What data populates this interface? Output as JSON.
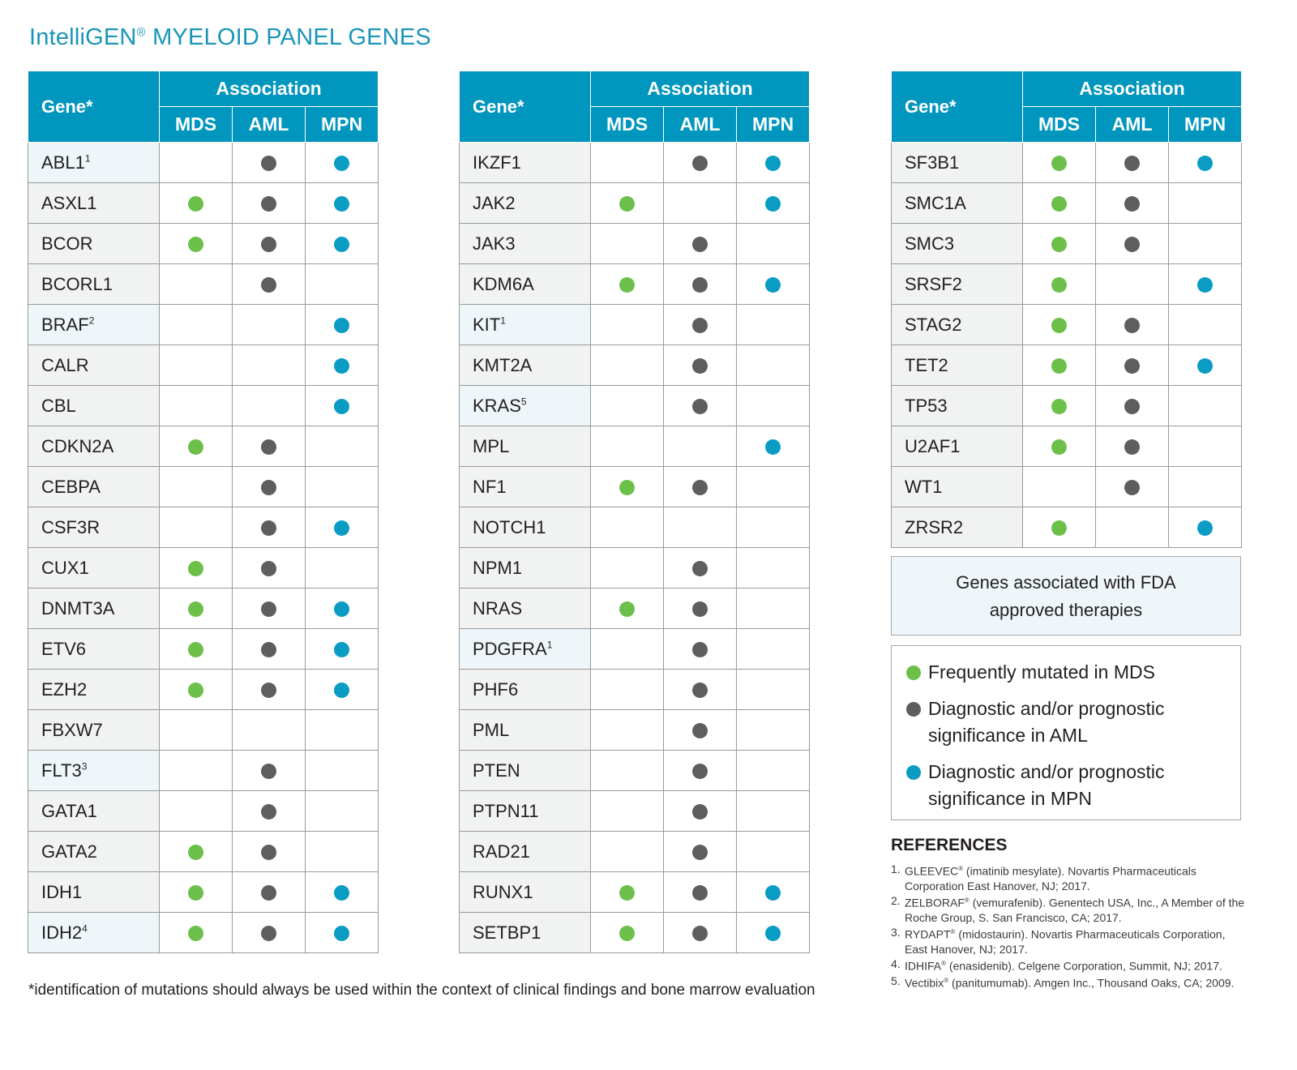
{
  "title": {
    "brand": "IntelliGEN",
    "reg": "®",
    "rest": " MYELOID PANEL GENES"
  },
  "colors": {
    "mds": "#6cc04a",
    "aml": "#5d5e60",
    "mpn": "#0b9cc4",
    "header": "#0096be",
    "title": "#1a95b8"
  },
  "header": {
    "gene": "Gene*",
    "association": "Association",
    "mds": "MDS",
    "aml": "AML",
    "mpn": "MPN"
  },
  "tables": [
    {
      "rows": [
        {
          "gene": "ABL1",
          "sup": "1",
          "fda": true,
          "mds": false,
          "aml": true,
          "mpn": true
        },
        {
          "gene": "ASXL1",
          "sup": "",
          "fda": false,
          "mds": true,
          "aml": true,
          "mpn": true
        },
        {
          "gene": "BCOR",
          "sup": "",
          "fda": false,
          "mds": true,
          "aml": true,
          "mpn": true
        },
        {
          "gene": "BCORL1",
          "sup": "",
          "fda": false,
          "mds": false,
          "aml": true,
          "mpn": false
        },
        {
          "gene": "BRAF",
          "sup": "2",
          "fda": true,
          "mds": false,
          "aml": false,
          "mpn": true
        },
        {
          "gene": "CALR",
          "sup": "",
          "fda": false,
          "mds": false,
          "aml": false,
          "mpn": true
        },
        {
          "gene": "CBL",
          "sup": "",
          "fda": false,
          "mds": false,
          "aml": false,
          "mpn": true
        },
        {
          "gene": "CDKN2A",
          "sup": "",
          "fda": false,
          "mds": true,
          "aml": true,
          "mpn": false
        },
        {
          "gene": "CEBPA",
          "sup": "",
          "fda": false,
          "mds": false,
          "aml": true,
          "mpn": false
        },
        {
          "gene": "CSF3R",
          "sup": "",
          "fda": false,
          "mds": false,
          "aml": true,
          "mpn": true
        },
        {
          "gene": "CUX1",
          "sup": "",
          "fda": false,
          "mds": true,
          "aml": true,
          "mpn": false
        },
        {
          "gene": "DNMT3A",
          "sup": "",
          "fda": false,
          "mds": true,
          "aml": true,
          "mpn": true
        },
        {
          "gene": "ETV6",
          "sup": "",
          "fda": false,
          "mds": true,
          "aml": true,
          "mpn": true
        },
        {
          "gene": "EZH2",
          "sup": "",
          "fda": false,
          "mds": true,
          "aml": true,
          "mpn": true
        },
        {
          "gene": "FBXW7",
          "sup": "",
          "fda": false,
          "mds": false,
          "aml": false,
          "mpn": false
        },
        {
          "gene": "FLT3",
          "sup": "3",
          "fda": true,
          "mds": false,
          "aml": true,
          "mpn": false
        },
        {
          "gene": "GATA1",
          "sup": "",
          "fda": false,
          "mds": false,
          "aml": true,
          "mpn": false
        },
        {
          "gene": "GATA2",
          "sup": "",
          "fda": false,
          "mds": true,
          "aml": true,
          "mpn": false
        },
        {
          "gene": "IDH1",
          "sup": "",
          "fda": false,
          "mds": true,
          "aml": true,
          "mpn": true
        },
        {
          "gene": "IDH2",
          "sup": "4",
          "fda": true,
          "mds": true,
          "aml": true,
          "mpn": true
        }
      ]
    },
    {
      "rows": [
        {
          "gene": "IKZF1",
          "sup": "",
          "fda": false,
          "mds": false,
          "aml": true,
          "mpn": true
        },
        {
          "gene": "JAK2",
          "sup": "",
          "fda": false,
          "mds": true,
          "aml": false,
          "mpn": true
        },
        {
          "gene": "JAK3",
          "sup": "",
          "fda": false,
          "mds": false,
          "aml": true,
          "mpn": false
        },
        {
          "gene": "KDM6A",
          "sup": "",
          "fda": false,
          "mds": true,
          "aml": true,
          "mpn": true
        },
        {
          "gene": "KIT",
          "sup": "1",
          "fda": true,
          "mds": false,
          "aml": true,
          "mpn": false
        },
        {
          "gene": "KMT2A",
          "sup": "",
          "fda": false,
          "mds": false,
          "aml": true,
          "mpn": false
        },
        {
          "gene": "KRAS",
          "sup": "5",
          "fda": true,
          "mds": false,
          "aml": true,
          "mpn": false
        },
        {
          "gene": "MPL",
          "sup": "",
          "fda": false,
          "mds": false,
          "aml": false,
          "mpn": true
        },
        {
          "gene": "NF1",
          "sup": "",
          "fda": false,
          "mds": true,
          "aml": true,
          "mpn": false
        },
        {
          "gene": "NOTCH1",
          "sup": "",
          "fda": false,
          "mds": false,
          "aml": false,
          "mpn": false
        },
        {
          "gene": "NPM1",
          "sup": "",
          "fda": false,
          "mds": false,
          "aml": true,
          "mpn": false
        },
        {
          "gene": "NRAS",
          "sup": "",
          "fda": false,
          "mds": true,
          "aml": true,
          "mpn": false
        },
        {
          "gene": "PDGFRA",
          "sup": "1",
          "fda": true,
          "mds": false,
          "aml": true,
          "mpn": false
        },
        {
          "gene": "PHF6",
          "sup": "",
          "fda": false,
          "mds": false,
          "aml": true,
          "mpn": false
        },
        {
          "gene": "PML",
          "sup": "",
          "fda": false,
          "mds": false,
          "aml": true,
          "mpn": false
        },
        {
          "gene": "PTEN",
          "sup": "",
          "fda": false,
          "mds": false,
          "aml": true,
          "mpn": false
        },
        {
          "gene": "PTPN11",
          "sup": "",
          "fda": false,
          "mds": false,
          "aml": true,
          "mpn": false
        },
        {
          "gene": "RAD21",
          "sup": "",
          "fda": false,
          "mds": false,
          "aml": true,
          "mpn": false
        },
        {
          "gene": "RUNX1",
          "sup": "",
          "fda": false,
          "mds": true,
          "aml": true,
          "mpn": true
        },
        {
          "gene": "SETBP1",
          "sup": "",
          "fda": false,
          "mds": true,
          "aml": true,
          "mpn": true
        }
      ]
    },
    {
      "rows": [
        {
          "gene": "SF3B1",
          "sup": "",
          "fda": false,
          "mds": true,
          "aml": true,
          "mpn": true
        },
        {
          "gene": "SMC1A",
          "sup": "",
          "fda": false,
          "mds": true,
          "aml": true,
          "mpn": false
        },
        {
          "gene": "SMC3",
          "sup": "",
          "fda": false,
          "mds": true,
          "aml": true,
          "mpn": false
        },
        {
          "gene": "SRSF2",
          "sup": "",
          "fda": false,
          "mds": true,
          "aml": false,
          "mpn": true
        },
        {
          "gene": "STAG2",
          "sup": "",
          "fda": false,
          "mds": true,
          "aml": true,
          "mpn": false
        },
        {
          "gene": "TET2",
          "sup": "",
          "fda": false,
          "mds": true,
          "aml": true,
          "mpn": true
        },
        {
          "gene": "TP53",
          "sup": "",
          "fda": false,
          "mds": true,
          "aml": true,
          "mpn": false
        },
        {
          "gene": "U2AF1",
          "sup": "",
          "fda": false,
          "mds": true,
          "aml": true,
          "mpn": false
        },
        {
          "gene": "WT1",
          "sup": "",
          "fda": false,
          "mds": false,
          "aml": true,
          "mpn": false
        },
        {
          "gene": "ZRSR2",
          "sup": "",
          "fda": false,
          "mds": true,
          "aml": false,
          "mpn": true
        }
      ]
    }
  ],
  "fda_box": {
    "line1": "Genes associated with FDA",
    "line2": "approved therapies"
  },
  "legend": [
    {
      "color": "#6cc04a",
      "line1": "Frequently mutated in MDS",
      "line2": ""
    },
    {
      "color": "#5d5e60",
      "line1": "Diagnostic and/or prognostic",
      "line2": "significance in AML"
    },
    {
      "color": "#0b9cc4",
      "line1": "Diagnostic and/or prognostic",
      "line2": "significance in MPN"
    }
  ],
  "references": {
    "title": "REFERENCES",
    "items": [
      {
        "num": "1.",
        "name": "GLEEVEC",
        "reg": "®",
        "rest": " (imatinib mesylate). Novartis Pharmaceuticals Corporation East Hanover, NJ; 2017."
      },
      {
        "num": "2.",
        "name": "ZELBORAF",
        "reg": "®",
        "rest": " (vemurafenib). Genentech USA, Inc., A Member of the Roche Group, S. San Francisco, CA; 2017."
      },
      {
        "num": "3.",
        "name": "RYDAPT",
        "reg": "®",
        "rest": " (midostaurin). Novartis Pharmaceuticals Corporation, East Hanover, NJ; 2017."
      },
      {
        "num": "4.",
        "name": "IDHIFA",
        "reg": "®",
        "rest": " (enasidenib). Celgene Corporation, Summit, NJ; 2017."
      },
      {
        "num": "5.",
        "name": "Vectibix",
        "reg": "®",
        "rest": " (panitumumab). Amgen Inc., Thousand Oaks, CA; 2009."
      }
    ]
  },
  "footnote": "*identification of mutations should always be used within the context of clinical findings and bone marrow evaluation"
}
